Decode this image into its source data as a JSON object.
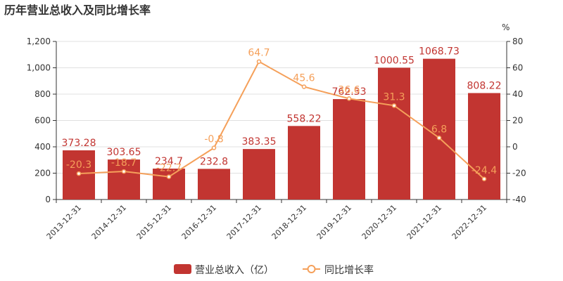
{
  "chart_data": {
    "type": "bar",
    "title": "历年营业总收入及同比增长率",
    "categories": [
      "2013-12-31",
      "2014-12-31",
      "2015-12-31",
      "2016-12-31",
      "2017-12-31",
      "2018-12-31",
      "2019-12-31",
      "2020-12-31",
      "2021-12-31",
      "2022-12-31"
    ],
    "series": [
      {
        "name": "营业总收入（亿）",
        "type": "bar",
        "axis": "left",
        "values": [
          373.28,
          303.65,
          234.7,
          232.8,
          383.35,
          558.22,
          762.33,
          1000.55,
          1068.73,
          808.22
        ],
        "labels": [
          "373.28",
          "303.65",
          "234.7",
          "232.8",
          "383.35",
          "558.22",
          "762.33",
          "1000.55",
          "1068.73",
          "808.22"
        ],
        "color": "#c23531"
      },
      {
        "name": "同比增长率",
        "type": "line",
        "axis": "right",
        "values": [
          -20.3,
          -18.7,
          -22.7,
          -0.8,
          64.7,
          45.6,
          36.6,
          31.3,
          6.8,
          -24.4
        ],
        "labels": [
          "-20.3",
          "-18.7",
          "-22.7",
          "-0.8",
          "64.7",
          "45.6",
          "36.6",
          "31.3",
          "6.8",
          "-24.4"
        ],
        "color": "#f5a05a"
      }
    ],
    "yleft": {
      "ylim": [
        0,
        1200
      ],
      "ticks": [
        "0",
        "200",
        "400",
        "600",
        "800",
        "1,000",
        "1,200"
      ]
    },
    "yright": {
      "label": "%",
      "ylim": [
        -40,
        80
      ],
      "ticks": [
        "-40",
        "-20",
        "0",
        "20",
        "40",
        "60",
        "80"
      ]
    },
    "grid": true,
    "legend": "bottom-center"
  }
}
